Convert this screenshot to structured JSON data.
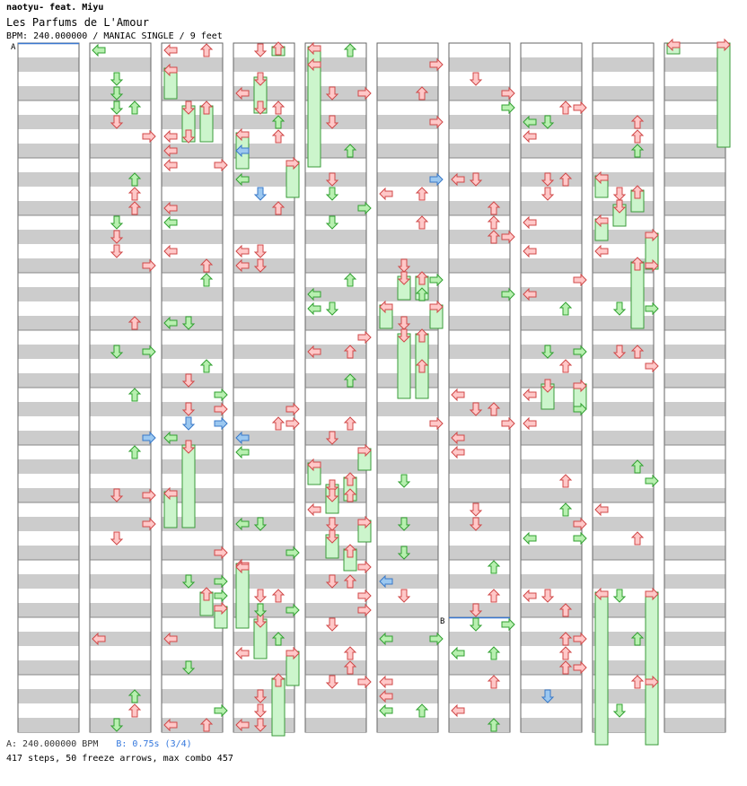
{
  "artist": "naotyu- feat. Miyu",
  "title": "Les Parfums de L'Amour",
  "meta": "BPM: 240.000000 / MANIAC SINGLE / 9 feet",
  "footer": {
    "bpm_a": "A: 240.000000 BPM",
    "bpm_b": "B: 0.75s (3/4)",
    "stats": "417 steps, 50 freeze arrows, max combo 457"
  },
  "markers": {
    "a": "A",
    "b": "B"
  },
  "colors": {
    "quarter": "#ffc8c8",
    "quarter_edge": "#d04848",
    "eighth": "#b8f0b0",
    "eighth_edge": "#30a030",
    "sixteenth": "#9cc8f0",
    "sixteenth_edge": "#3878c8",
    "freeze_fill": "#ccf5cc",
    "freeze_edge": "#3a9a3a",
    "stripe": "#cccccc",
    "border": "#666666",
    "marker_line": "#3a78d0"
  },
  "icons": [
    "arrow-left-icon",
    "arrow-down-icon",
    "arrow-up-icon",
    "arrow-right-icon"
  ]
}
